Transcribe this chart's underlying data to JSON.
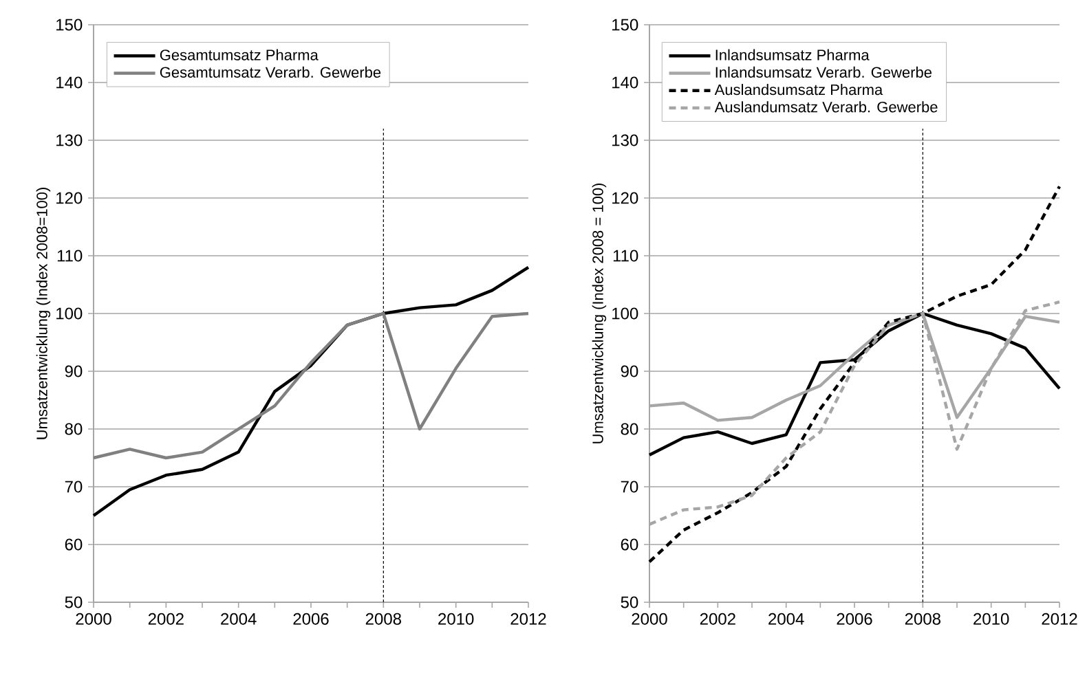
{
  "chart_data": [
    {
      "type": "line",
      "ylabel": "Umsatzentwicklung  (Index 2008=100)",
      "x": [
        2000,
        2001,
        2002,
        2003,
        2004,
        2005,
        2006,
        2007,
        2008,
        2009,
        2010,
        2011,
        2012
      ],
      "series": [
        {
          "name": "Gesamtumsatz Pharma",
          "color": "#000000",
          "values": [
            65,
            69.5,
            72,
            73,
            76,
            86.5,
            91,
            98,
            100,
            101,
            101.5,
            104,
            108
          ]
        },
        {
          "name": "Gesamtumsatz Verarb. Gewerbe",
          "color": "#808080",
          "values": [
            75,
            76.5,
            75,
            76,
            80,
            84,
            91.5,
            98,
            100,
            80,
            90.5,
            99.5,
            100
          ]
        }
      ],
      "xlim": [
        2000,
        2012
      ],
      "xticks": [
        2000,
        {
          "value": 2001,
          "label": null
        },
        2002,
        {
          "value": 2003,
          "label": null
        },
        2004,
        {
          "value": 2005,
          "label": null
        },
        2006,
        {
          "value": 2007,
          "label": null
        },
        2008,
        {
          "value": 2009,
          "label": null
        },
        2010,
        {
          "value": 2011,
          "label": null
        },
        2012
      ],
      "ylim": [
        50,
        150
      ],
      "yticks": [
        50,
        60,
        70,
        80,
        90,
        100,
        110,
        120,
        130,
        140,
        150
      ],
      "ref_lines": [
        {
          "axis": "x",
          "value": 2008,
          "color": "#000000",
          "line_style": "dashed"
        }
      ],
      "grid": "y",
      "legend": "top left",
      "marker": "none",
      "line_style": "solid"
    },
    {
      "type": "line",
      "ylabel": "Umsatzentwicklung  (Index 2008 = 100)",
      "x": [
        2000,
        2001,
        2002,
        2003,
        2004,
        2005,
        2006,
        2007,
        2008,
        2009,
        2010,
        2011,
        2012
      ],
      "series": [
        {
          "name": "Inlandsumsatz Pharma",
          "color": "#000000",
          "line_style": "solid",
          "values": [
            75.5,
            78.5,
            79.5,
            77.5,
            79,
            91.5,
            92,
            97,
            100,
            98,
            96.5,
            94,
            87
          ]
        },
        {
          "name": "Inlandsumsatz Verarb. Gewerbe",
          "color": "#a6a6a6",
          "line_style": "solid",
          "values": [
            84,
            84.5,
            81.5,
            82,
            85,
            87.5,
            93,
            98,
            100,
            82,
            90.5,
            99.5,
            98.5
          ]
        },
        {
          "name": "Auslandsumsatz Pharma",
          "color": "#000000",
          "line_style": "dashed",
          "values": [
            57,
            62.5,
            65.5,
            69,
            73.5,
            83.5,
            91.5,
            98.5,
            100,
            103,
            105,
            111,
            122
          ]
        },
        {
          "name": "Auslandumsatz Verarb. Gewerbe",
          "color": "#a6a6a6",
          "line_style": "dashed",
          "values": [
            63.5,
            66,
            66.5,
            68.5,
            75,
            79.5,
            91,
            98,
            100,
            76.5,
            90.5,
            100.5,
            102
          ]
        }
      ],
      "xlim": [
        2000,
        2012
      ],
      "xticks": [
        2000,
        {
          "value": 2001,
          "label": null
        },
        2002,
        {
          "value": 2003,
          "label": null
        },
        2004,
        {
          "value": 2005,
          "label": null
        },
        2006,
        {
          "value": 2007,
          "label": null
        },
        2008,
        {
          "value": 2009,
          "label": null
        },
        2010,
        {
          "value": 2011,
          "label": null
        },
        2012
      ],
      "ylim": [
        50,
        150
      ],
      "yticks": [
        50,
        60,
        70,
        80,
        90,
        100,
        110,
        120,
        130,
        140,
        150
      ],
      "ref_lines": [
        {
          "axis": "x",
          "value": 2008,
          "color": "#000000",
          "line_style": "dashed"
        }
      ],
      "grid": "y",
      "legend": "top left",
      "marker": "none"
    }
  ]
}
